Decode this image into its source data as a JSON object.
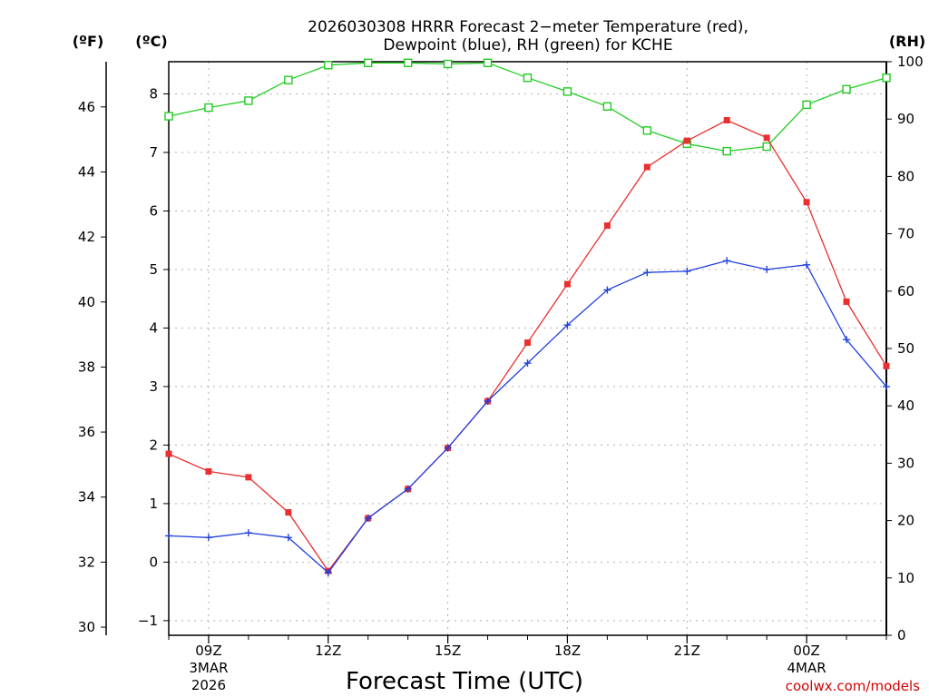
{
  "chart_data": {
    "type": "line",
    "title_line1": "2026030308 HRRR Forecast 2−meter Temperature (red),",
    "title_line2": "Dewpoint (blue), RH (green) for KCHE",
    "xlabel": "Forecast Time (UTC)",
    "credit": "coolwx.com/models",
    "unit_f": "(ºF)",
    "unit_c": "(ºC)",
    "unit_rh": "(RH)",
    "x_hours": [
      8,
      9,
      10,
      11,
      12,
      13,
      14,
      15,
      16,
      17,
      18,
      19,
      20,
      21,
      22,
      23,
      24,
      25,
      26
    ],
    "x_range": [
      8,
      26
    ],
    "x_ticks": [
      {
        "hour": 9,
        "label": "09Z",
        "sub1": "3MAR",
        "sub2": "2026"
      },
      {
        "hour": 12,
        "label": "12Z",
        "sub1": "",
        "sub2": ""
      },
      {
        "hour": 15,
        "label": "15Z",
        "sub1": "",
        "sub2": ""
      },
      {
        "hour": 18,
        "label": "18Z",
        "sub1": "",
        "sub2": ""
      },
      {
        "hour": 21,
        "label": "21Z",
        "sub1": "",
        "sub2": ""
      },
      {
        "hour": 24,
        "label": "00Z",
        "sub1": "4MAR",
        "sub2": ""
      }
    ],
    "c_range": [
      -1.25,
      8.55
    ],
    "c_ticks": [
      -1,
      0,
      1,
      2,
      3,
      4,
      5,
      6,
      7,
      8
    ],
    "c_tick_labels": [
      "−1",
      "0",
      "1",
      "2",
      "3",
      "4",
      "5",
      "6",
      "7",
      "8"
    ],
    "f_ticks": [
      30,
      32,
      34,
      36,
      38,
      40,
      42,
      44,
      46
    ],
    "rh_range": [
      0,
      100
    ],
    "rh_ticks": [
      0,
      10,
      20,
      30,
      40,
      50,
      60,
      70,
      80,
      90,
      100
    ],
    "series": [
      {
        "name": "Temperature",
        "unit": "C",
        "color": "#e83030",
        "marker": "filled-square",
        "values": [
          1.85,
          1.55,
          1.45,
          0.85,
          -0.15,
          0.75,
          1.25,
          1.95,
          2.75,
          3.75,
          4.75,
          5.75,
          6.75,
          7.2,
          7.55,
          7.25,
          6.15,
          4.45,
          3.35
        ]
      },
      {
        "name": "Dewpoint",
        "unit": "C",
        "color": "#2040e0",
        "marker": "plus",
        "values": [
          0.45,
          0.42,
          0.5,
          0.42,
          -0.18,
          0.75,
          1.25,
          1.95,
          2.75,
          3.4,
          4.05,
          4.65,
          4.95,
          4.97,
          5.15,
          5.0,
          5.08,
          3.8,
          3.0
        ]
      },
      {
        "name": "RH",
        "unit": "%",
        "color": "#22cc22",
        "marker": "open-square",
        "values": [
          90.5,
          92,
          93.2,
          96.8,
          99.4,
          99.8,
          99.8,
          99.6,
          99.8,
          97.2,
          94.8,
          92.2,
          88,
          85.7,
          84.4,
          85.2,
          92.5,
          95.2,
          97.2
        ]
      }
    ]
  }
}
